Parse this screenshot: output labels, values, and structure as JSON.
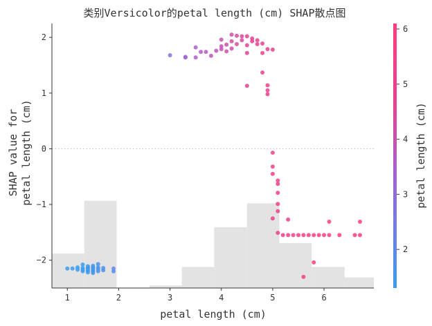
{
  "chart_data": {
    "type": "scatter",
    "title": "类别Versicolor的petal length (cm) SHAP散点图",
    "xlabel": "petal length (cm)",
    "ylabel_lines": [
      "SHAP value for",
      "petal length (cm)"
    ],
    "xlim": [
      0.7,
      6.97
    ],
    "ylim": [
      -2.5,
      2.25
    ],
    "x_ticks": [
      1,
      2,
      3,
      4,
      5,
      6
    ],
    "y_ticks": [
      -2,
      -1,
      0,
      1,
      2
    ],
    "zero_line": true,
    "colorbar": {
      "label": "petal length (cm)",
      "min": 1.3,
      "max": 6.1,
      "ticks": [
        2,
        3,
        4,
        5,
        6
      ],
      "colors": [
        "#3a9df0",
        "#9b66d8",
        "#e8408f",
        "#ff3d7f"
      ]
    },
    "histogram": {
      "bins": [
        [
          0.7,
          1.33,
          0.13
        ],
        [
          1.33,
          1.96,
          0.33
        ],
        [
          2.6,
          3.23,
          0.01
        ],
        [
          3.23,
          3.86,
          0.08
        ],
        [
          3.86,
          4.5,
          0.23
        ],
        [
          4.5,
          5.13,
          0.32
        ],
        [
          5.13,
          5.76,
          0.17
        ],
        [
          5.76,
          6.4,
          0.08
        ],
        [
          6.4,
          7.03,
          0.04
        ]
      ]
    },
    "points": [
      {
        "x": 1.0,
        "y": -2.15
      },
      {
        "x": 1.1,
        "y": -2.15
      },
      {
        "x": 1.2,
        "y": -2.13
      },
      {
        "x": 1.2,
        "y": -2.17
      },
      {
        "x": 1.3,
        "y": -2.08
      },
      {
        "x": 1.3,
        "y": -2.14
      },
      {
        "x": 1.3,
        "y": -2.17
      },
      {
        "x": 1.3,
        "y": -2.2
      },
      {
        "x": 1.4,
        "y": -2.11
      },
      {
        "x": 1.4,
        "y": -2.13
      },
      {
        "x": 1.4,
        "y": -2.15
      },
      {
        "x": 1.4,
        "y": -2.17
      },
      {
        "x": 1.4,
        "y": -2.19
      },
      {
        "x": 1.4,
        "y": -2.22
      },
      {
        "x": 1.5,
        "y": -2.1
      },
      {
        "x": 1.5,
        "y": -2.13
      },
      {
        "x": 1.5,
        "y": -2.15
      },
      {
        "x": 1.5,
        "y": -2.18
      },
      {
        "x": 1.5,
        "y": -2.2
      },
      {
        "x": 1.5,
        "y": -2.23
      },
      {
        "x": 1.6,
        "y": -2.07
      },
      {
        "x": 1.6,
        "y": -2.13
      },
      {
        "x": 1.6,
        "y": -2.16
      },
      {
        "x": 1.6,
        "y": -2.2
      },
      {
        "x": 1.7,
        "y": -2.14
      },
      {
        "x": 1.7,
        "y": -2.18
      },
      {
        "x": 1.9,
        "y": -2.15
      },
      {
        "x": 1.9,
        "y": -2.2
      },
      {
        "x": 3.0,
        "y": 1.68
      },
      {
        "x": 3.3,
        "y": 1.64
      },
      {
        "x": 3.3,
        "y": 1.65
      },
      {
        "x": 3.5,
        "y": 1.64
      },
      {
        "x": 3.5,
        "y": 1.82
      },
      {
        "x": 3.6,
        "y": 1.74
      },
      {
        "x": 3.7,
        "y": 1.74
      },
      {
        "x": 3.8,
        "y": 1.67
      },
      {
        "x": 3.9,
        "y": 1.76
      },
      {
        "x": 4.0,
        "y": 1.79
      },
      {
        "x": 4.0,
        "y": 1.84
      },
      {
        "x": 4.0,
        "y": 1.96
      },
      {
        "x": 4.1,
        "y": 1.75
      },
      {
        "x": 4.1,
        "y": 1.87
      },
      {
        "x": 4.2,
        "y": 1.8
      },
      {
        "x": 4.2,
        "y": 1.93
      },
      {
        "x": 4.2,
        "y": 2.05
      },
      {
        "x": 4.3,
        "y": 1.88
      },
      {
        "x": 4.3,
        "y": 2.03
      },
      {
        "x": 4.4,
        "y": 1.95
      },
      {
        "x": 4.4,
        "y": 2.02
      },
      {
        "x": 4.5,
        "y": 1.72
      },
      {
        "x": 4.5,
        "y": 1.86
      },
      {
        "x": 4.5,
        "y": 2.02
      },
      {
        "x": 4.5,
        "y": 1.13
      },
      {
        "x": 4.6,
        "y": 1.93
      },
      {
        "x": 4.6,
        "y": 1.98
      },
      {
        "x": 4.7,
        "y": 1.88
      },
      {
        "x": 4.7,
        "y": 1.95
      },
      {
        "x": 4.8,
        "y": 1.89
      },
      {
        "x": 4.8,
        "y": 1.72
      },
      {
        "x": 4.8,
        "y": 1.37
      },
      {
        "x": 4.9,
        "y": 1.79
      },
      {
        "x": 4.9,
        "y": 1.14
      },
      {
        "x": 4.9,
        "y": 1.05
      },
      {
        "x": 4.9,
        "y": 0.98
      },
      {
        "x": 5.0,
        "y": 1.78
      },
      {
        "x": 5.0,
        "y": -1.25
      },
      {
        "x": 5.0,
        "y": -0.07
      },
      {
        "x": 5.0,
        "y": -0.32
      },
      {
        "x": 5.0,
        "y": -0.45
      },
      {
        "x": 5.1,
        "y": -0.57
      },
      {
        "x": 5.1,
        "y": -0.63
      },
      {
        "x": 5.1,
        "y": -0.79
      },
      {
        "x": 5.1,
        "y": -0.99
      },
      {
        "x": 5.1,
        "y": -1.12
      },
      {
        "x": 5.1,
        "y": -1.51
      },
      {
        "x": 5.2,
        "y": -1.55
      },
      {
        "x": 5.3,
        "y": -1.27
      },
      {
        "x": 5.3,
        "y": -1.55
      },
      {
        "x": 5.4,
        "y": -1.55
      },
      {
        "x": 5.5,
        "y": -1.55
      },
      {
        "x": 5.6,
        "y": -1.55
      },
      {
        "x": 5.6,
        "y": -2.3
      },
      {
        "x": 5.7,
        "y": -1.55
      },
      {
        "x": 5.8,
        "y": -1.55
      },
      {
        "x": 5.8,
        "y": -2.04
      },
      {
        "x": 5.9,
        "y": -1.55
      },
      {
        "x": 6.0,
        "y": -1.55
      },
      {
        "x": 6.1,
        "y": -1.55
      },
      {
        "x": 6.1,
        "y": -1.31
      },
      {
        "x": 6.3,
        "y": -1.55
      },
      {
        "x": 6.6,
        "y": -1.55
      },
      {
        "x": 6.7,
        "y": -1.31
      },
      {
        "x": 6.7,
        "y": -1.55
      }
    ]
  }
}
